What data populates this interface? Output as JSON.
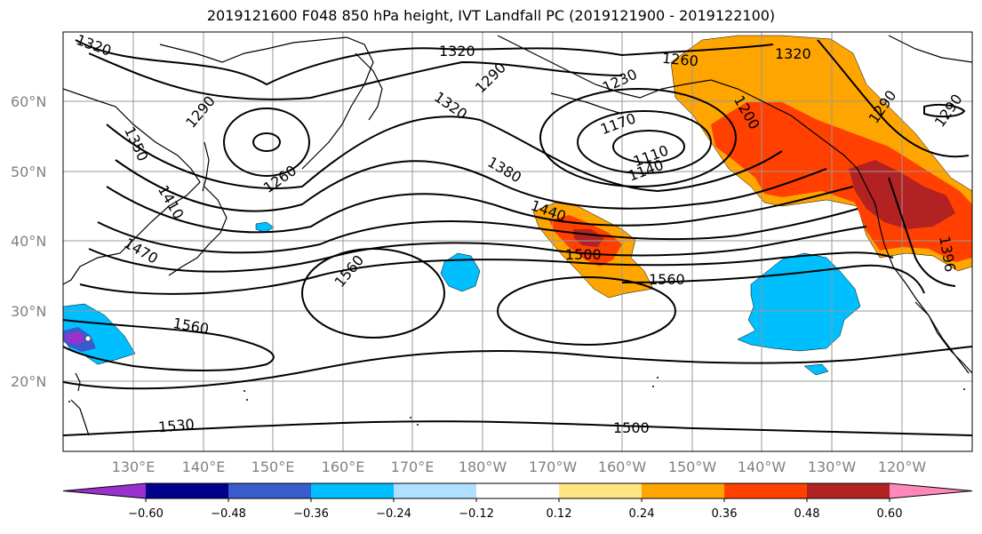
{
  "title": "2019121600 F048 850 hPa height, IVT Landfall PC (2019121900 - 2019122100)",
  "lat_labels": [
    "60°N",
    "50°N",
    "40°N",
    "30°N",
    "20°N"
  ],
  "lon_labels": [
    "130°E",
    "140°E",
    "150°E",
    "160°E",
    "170°E",
    "180°W",
    "170°W",
    "160°W",
    "150°W",
    "140°W",
    "130°W",
    "120°W"
  ],
  "contour_labels": [
    "1320",
    "1320",
    "1290",
    "1230",
    "1260",
    "1320",
    "1290",
    "1350",
    "1290",
    "1320",
    "1170",
    "1200",
    "1260",
    "1110",
    "1140",
    "1380",
    "1410",
    "1440",
    "1470",
    "1500",
    "1560",
    "1560",
    "1560",
    "1530",
    "1500",
    "1290",
    "1396"
  ],
  "colorbar": {
    "ticks": [
      "−0.60",
      "−0.48",
      "−0.36",
      "−0.24",
      "−0.12",
      "0.12",
      "0.24",
      "0.36",
      "0.48",
      "0.60"
    ],
    "colors": [
      "#9932CC",
      "#00008B",
      "#3A5BCC",
      "#00BFFF",
      "#B0E0FF",
      "#FFFFFF",
      "#FFE680",
      "#FFA500",
      "#FF4000",
      "#B22222",
      "#FF88BB"
    ]
  }
}
